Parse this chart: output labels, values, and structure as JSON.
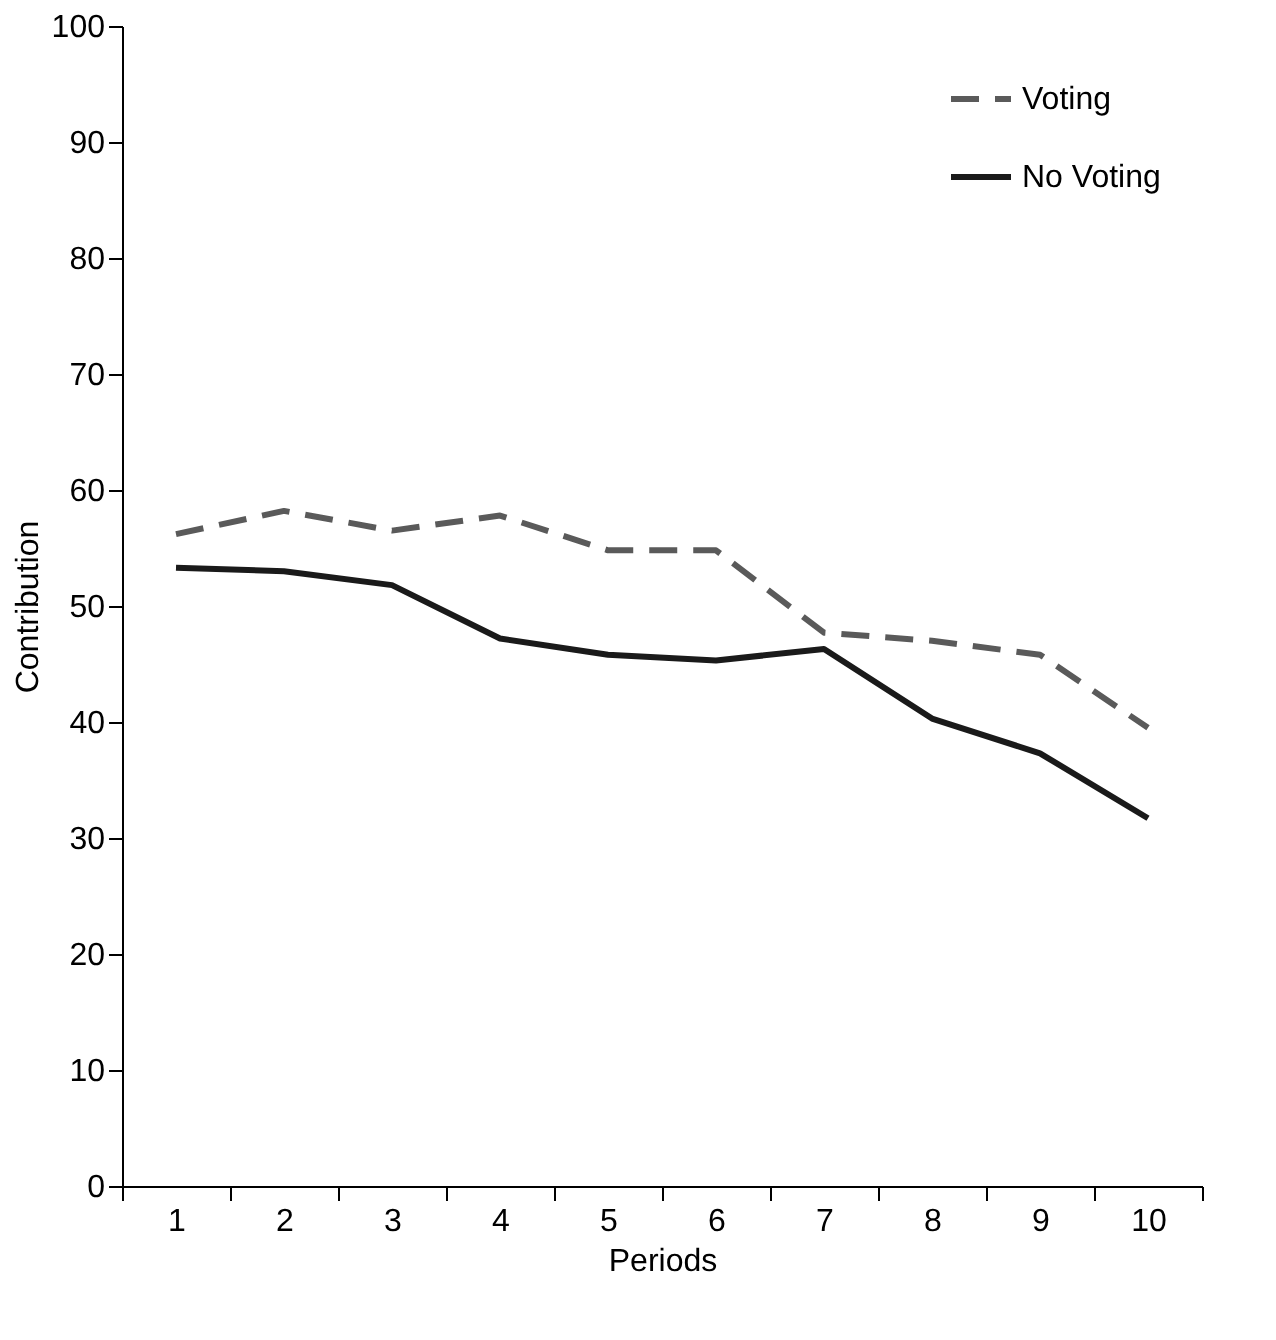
{
  "chart_data": {
    "type": "line",
    "xlabel": "Periods",
    "ylabel": "Contribution",
    "categories": [
      "1",
      "2",
      "3",
      "4",
      "5",
      "6",
      "7",
      "8",
      "9",
      "10"
    ],
    "series": [
      {
        "name": "Voting",
        "color": "#5a5a5a",
        "line_style": "dashed",
        "values": [
          56.2,
          58.2,
          56.5,
          57.8,
          54.8,
          54.8,
          47.7,
          47,
          45.8,
          39.5
        ]
      },
      {
        "name": "No Voting",
        "color": "#1a1a1a",
        "line_style": "solid",
        "values": [
          53.3,
          53.0,
          51.8,
          47.2,
          45.8,
          45.3,
          46.3,
          40.3,
          37.3,
          31.7
        ]
      }
    ],
    "ylim": [
      0,
      100
    ],
    "yticks": [
      0,
      10,
      20,
      30,
      40,
      50,
      60,
      70,
      80,
      90,
      100
    ],
    "grid": false,
    "legend": "top right"
  }
}
